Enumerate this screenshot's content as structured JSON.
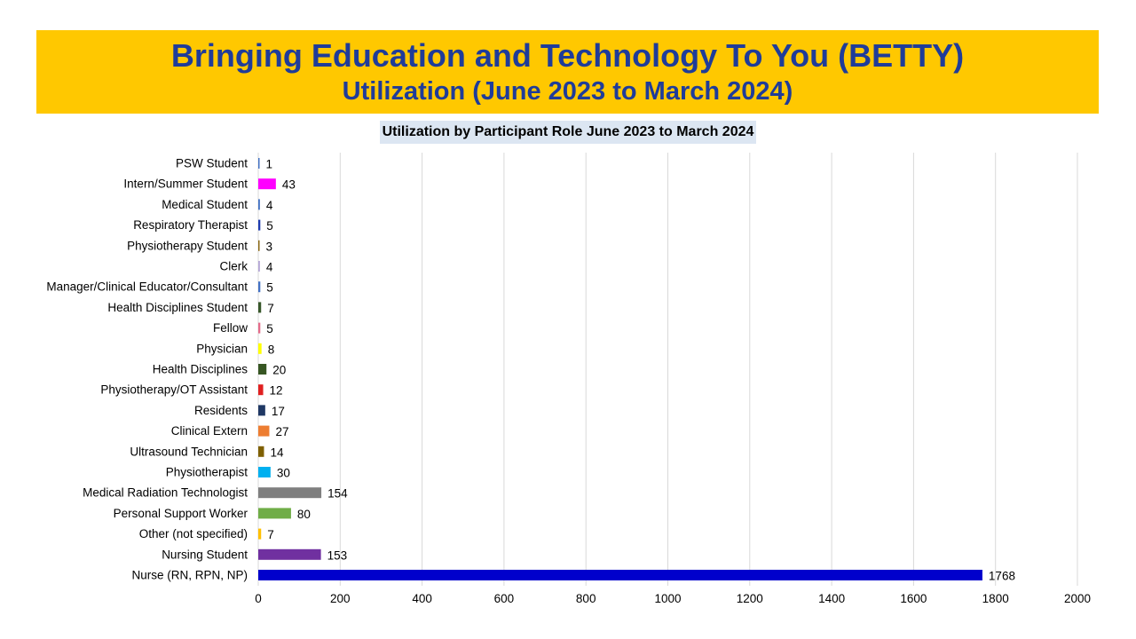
{
  "banner": {
    "title": "Bringing Education and Technology To You (BETTY)",
    "subtitle": "Utilization (June 2023 to March 2024)",
    "background": "#FFC800",
    "text_color": "#1F3C99"
  },
  "chart_data": {
    "type": "bar",
    "orientation": "horizontal",
    "title": "Utilization by Participant Role June 2023 to March 2024",
    "xlabel": "",
    "ylabel": "",
    "xlim": [
      0,
      2000
    ],
    "xticks": [
      0,
      200,
      400,
      600,
      800,
      1000,
      1200,
      1400,
      1600,
      1800,
      2000
    ],
    "grid": true,
    "legend": "none",
    "categories": [
      "PSW Student",
      "Intern/Summer Student",
      "Medical Student",
      "Respiratory Therapist",
      "Physiotherapy Student",
      "Clerk",
      "Manager/Clinical Educator/Consultant",
      "Health Disciplines Student",
      "Fellow",
      "Physician",
      "Health Disciplines",
      "Physiotherapy/OT Assistant",
      "Residents",
      "Clinical Extern",
      "Ultrasound Technician",
      "Physiotherapist",
      "Medical Radiation Technologist",
      "Personal Support Worker",
      "Other (not specified)",
      "Nursing Student",
      "Nurse (RN, RPN, NP)"
    ],
    "values": [
      1,
      43,
      4,
      5,
      3,
      4,
      5,
      7,
      5,
      8,
      20,
      12,
      17,
      27,
      14,
      30,
      154,
      80,
      7,
      153,
      1768
    ],
    "colors": [
      "#4472C4",
      "#FF00FF",
      "#4472C4",
      "#1F3CB0",
      "#8B6914",
      "#B4A7D6",
      "#4472C4",
      "#38572A",
      "#E46C8A",
      "#FFFF00",
      "#375623",
      "#E02020",
      "#1F3864",
      "#ED7D31",
      "#7F6000",
      "#00B0F0",
      "#7F7F7F",
      "#70AD47",
      "#FFC000",
      "#7030A0",
      "#0000CC"
    ]
  }
}
